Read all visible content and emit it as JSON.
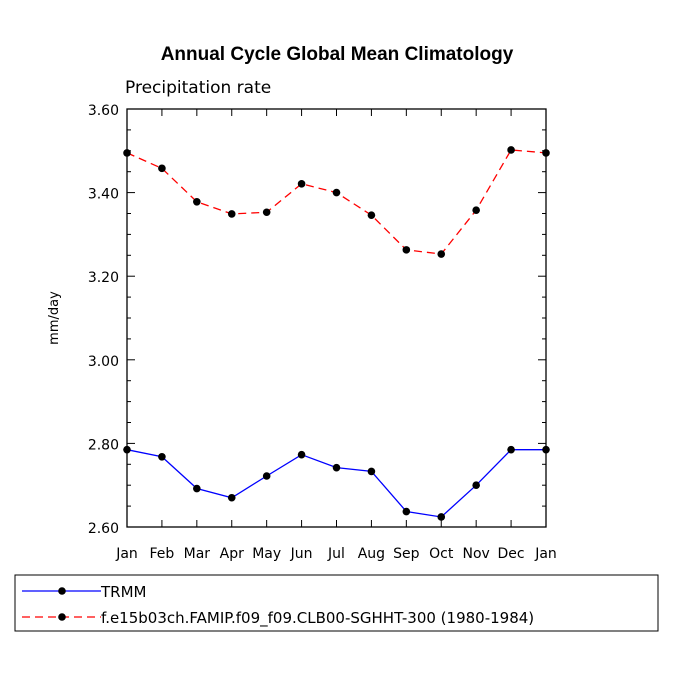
{
  "chart_data": {
    "type": "line",
    "title": "Annual Cycle Global Mean Climatology",
    "subtitle": "Precipitation rate",
    "xlabel": "",
    "ylabel": "mm/day",
    "categories": [
      "Jan",
      "Feb",
      "Mar",
      "Apr",
      "May",
      "Jun",
      "Jul",
      "Aug",
      "Sep",
      "Oct",
      "Nov",
      "Dec",
      "Jan"
    ],
    "ylim": [
      2.6,
      3.6
    ],
    "yticks": [
      "2.60",
      "2.80",
      "3.00",
      "3.20",
      "3.40",
      "3.60"
    ],
    "grid": false,
    "legend_position": "bottom",
    "series": [
      {
        "name": "TRMM",
        "color": "#0000ff",
        "dash": "solid",
        "values": [
          2.785,
          2.768,
          2.692,
          2.67,
          2.722,
          2.773,
          2.742,
          2.733,
          2.637,
          2.624,
          2.7,
          2.785,
          2.785
        ]
      },
      {
        "name": "f.e15b03ch.FAMIP.f09_f09.CLB00-SGHHT-300 (1980-1984)",
        "color": "#ff0000",
        "dash": "dashed",
        "values": [
          3.495,
          3.458,
          3.378,
          3.349,
          3.353,
          3.421,
          3.4,
          3.346,
          3.263,
          3.253,
          3.358,
          3.502,
          3.495
        ]
      }
    ]
  }
}
